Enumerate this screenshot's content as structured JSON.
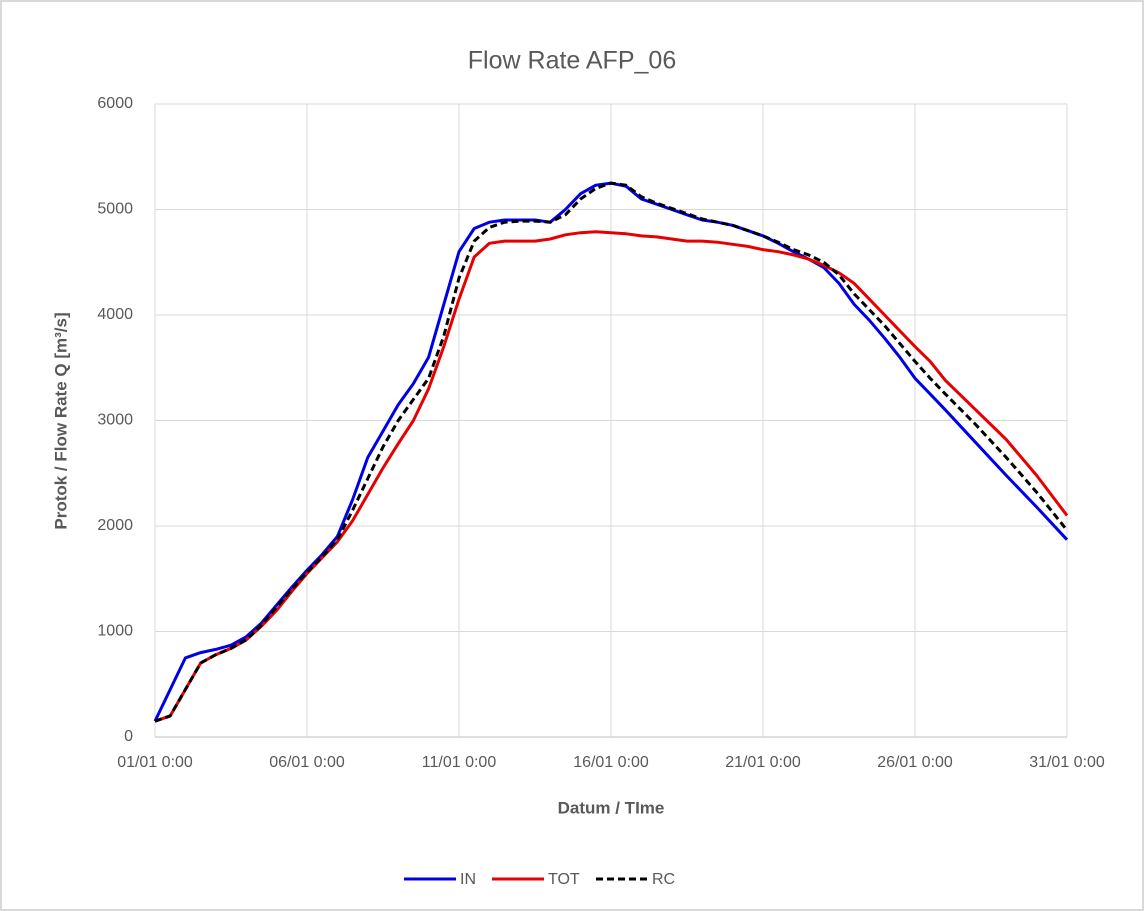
{
  "chart_data": {
    "type": "line",
    "title": "Flow Rate AFP_06",
    "x_label": "Datum / TIme",
    "y_label": "Protok / Flow Rate Q [m³/s]",
    "x": [
      0,
      0.5,
      1,
      1.5,
      2,
      2.5,
      3,
      3.5,
      4,
      4.5,
      5,
      5.5,
      6,
      6.5,
      7,
      7.5,
      8,
      8.5,
      9,
      9.5,
      10,
      10.5,
      11,
      11.5,
      12,
      12.5,
      13,
      13.5,
      14,
      14.5,
      15,
      15.5,
      16,
      16.5,
      17,
      17.5,
      18,
      18.5,
      19,
      19.5,
      20,
      20.5,
      21,
      21.5,
      22,
      22.5,
      23,
      23.5,
      24,
      24.5,
      25,
      25.5,
      26,
      27,
      28,
      29,
      30
    ],
    "series": [
      {
        "name": "IN",
        "color": "#0000e6",
        "dash": false,
        "values": [
          150,
          450,
          750,
          800,
          830,
          870,
          950,
          1080,
          1250,
          1420,
          1580,
          1730,
          1900,
          2250,
          2650,
          2900,
          3150,
          3350,
          3600,
          4100,
          4600,
          4820,
          4880,
          4900,
          4900,
          4900,
          4880,
          5000,
          5150,
          5230,
          5250,
          5220,
          5100,
          5050,
          5000,
          4950,
          4900,
          4880,
          4850,
          4800,
          4750,
          4680,
          4600,
          4530,
          4450,
          4300,
          4100,
          3950,
          3780,
          3600,
          3400,
          3250,
          3100,
          2790,
          2480,
          2180,
          1870
        ]
      },
      {
        "name": "TOT",
        "color": "#e60000",
        "dash": false,
        "values": [
          150,
          200,
          450,
          700,
          780,
          840,
          920,
          1050,
          1200,
          1380,
          1550,
          1700,
          1850,
          2050,
          2300,
          2550,
          2780,
          3000,
          3300,
          3700,
          4150,
          4550,
          4680,
          4700,
          4700,
          4700,
          4720,
          4760,
          4780,
          4790,
          4780,
          4770,
          4750,
          4740,
          4720,
          4700,
          4700,
          4690,
          4670,
          4650,
          4620,
          4600,
          4570,
          4530,
          4470,
          4400,
          4300,
          4150,
          4000,
          3850,
          3700,
          3560,
          3380,
          3100,
          2820,
          2480,
          2100
        ]
      },
      {
        "name": "RC",
        "color": "#000000",
        "dash": true,
        "values": [
          150,
          200,
          450,
          700,
          780,
          840,
          920,
          1060,
          1230,
          1400,
          1560,
          1710,
          1870,
          2150,
          2450,
          2750,
          3000,
          3200,
          3400,
          3800,
          4350,
          4700,
          4830,
          4880,
          4890,
          4890,
          4880,
          4950,
          5100,
          5200,
          5250,
          5230,
          5120,
          5060,
          5010,
          4960,
          4910,
          4880,
          4850,
          4800,
          4750,
          4690,
          4620,
          4570,
          4500,
          4380,
          4200,
          4050,
          3900,
          3730,
          3560,
          3400,
          3250,
          2960,
          2650,
          2320,
          1960
        ]
      }
    ],
    "xlim": [
      0,
      30
    ],
    "xticks": [
      {
        "value": 0,
        "label": "01/01 0:00"
      },
      {
        "value": 5,
        "label": "06/01 0:00"
      },
      {
        "value": 10,
        "label": "11/01 0:00"
      },
      {
        "value": 15,
        "label": "16/01 0:00"
      },
      {
        "value": 20,
        "label": "21/01 0:00"
      },
      {
        "value": 25,
        "label": "26/01 0:00"
      },
      {
        "value": 30,
        "label": "31/01 0:00"
      }
    ],
    "ylim": [
      0,
      6000
    ],
    "yticks": [
      0,
      1000,
      2000,
      3000,
      4000,
      5000,
      6000
    ],
    "grid": true,
    "legend": "bottom"
  }
}
